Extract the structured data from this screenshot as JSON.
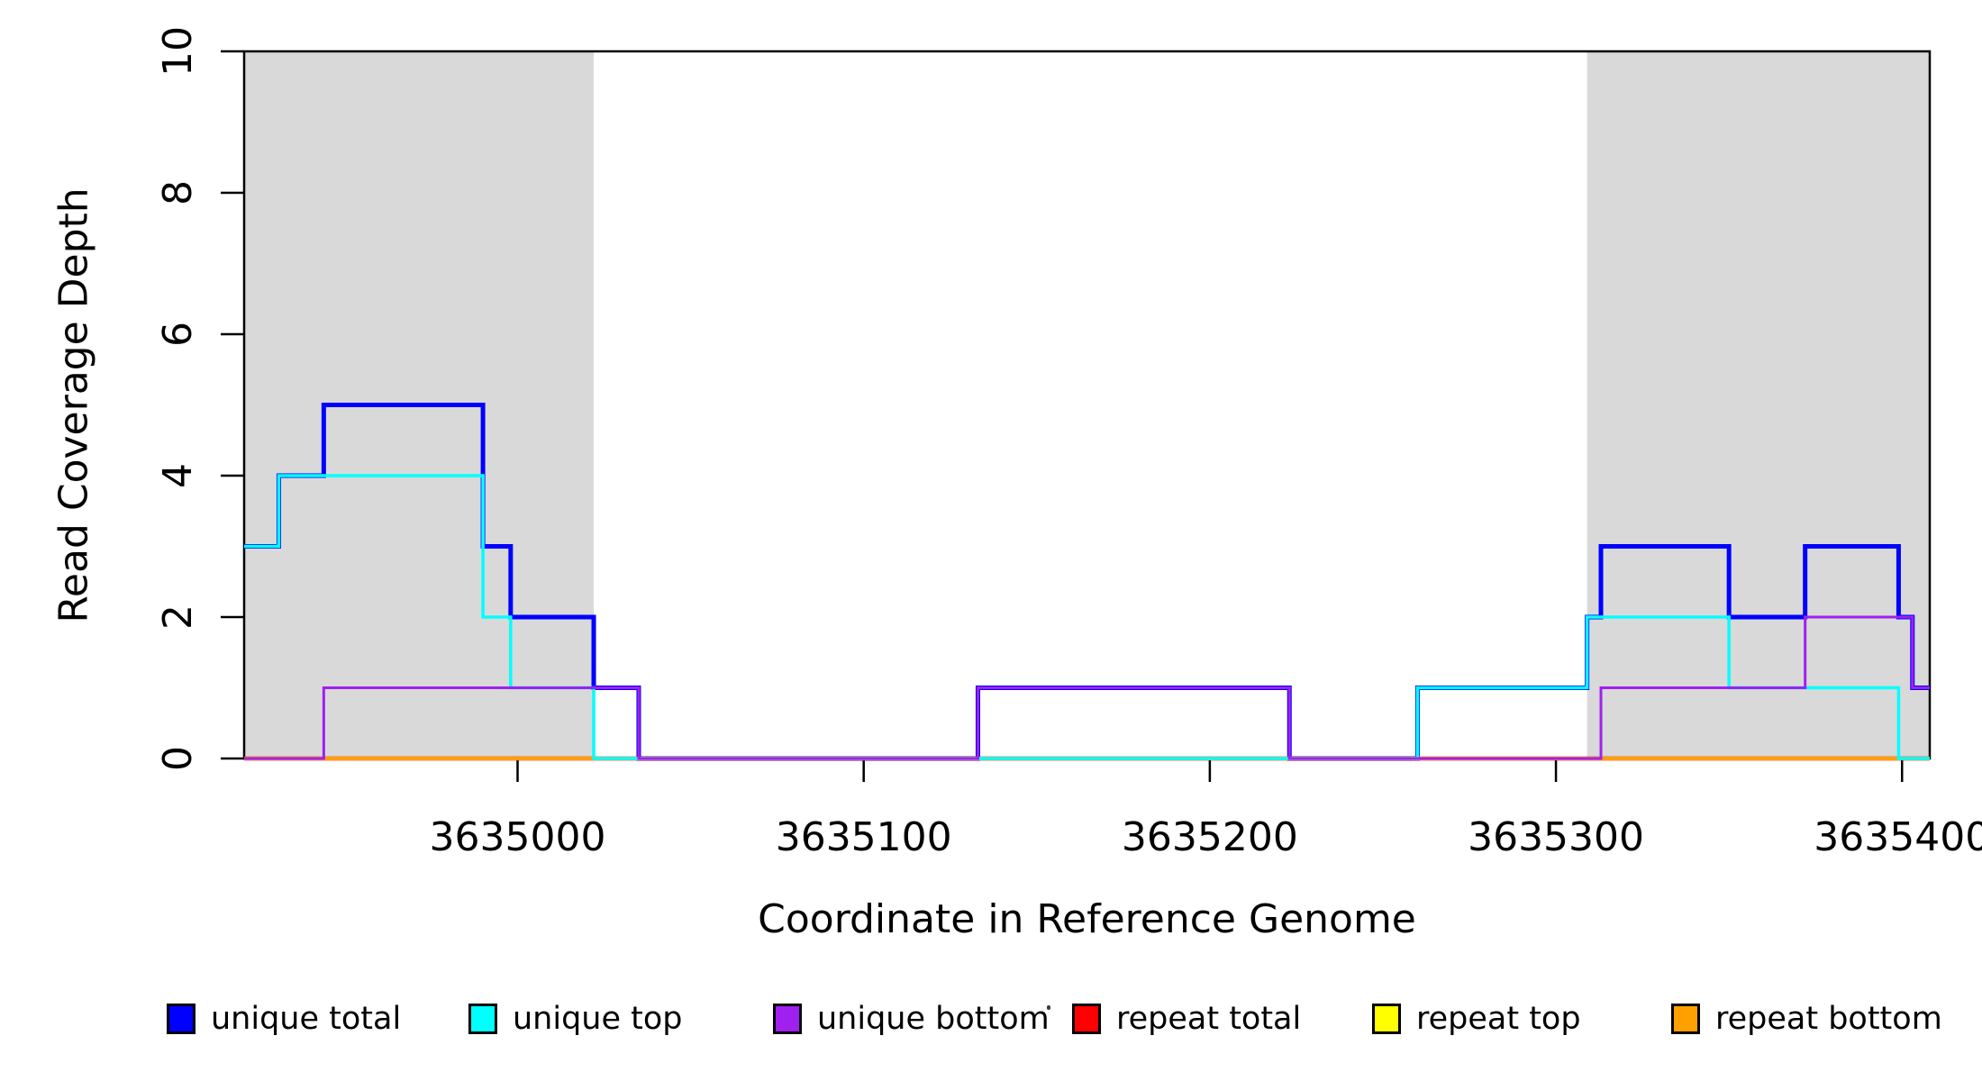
{
  "figure": {
    "background": "#ffffff",
    "border_color": "#000000"
  },
  "chart_data": {
    "type": "line",
    "subtype": "step-coverage-plot",
    "title": "",
    "xlabel": "Coordinate in Reference Genome",
    "ylabel": "Read Coverage Depth",
    "xlim": [
      3634921,
      3635408
    ],
    "ylim": [
      0,
      10
    ],
    "x_ticks": [
      3635000,
      3635100,
      3635200,
      3635300,
      3635400
    ],
    "y_ticks": [
      0,
      2,
      4,
      6,
      8,
      10
    ],
    "grid": false,
    "legend_position": "bottom",
    "shaded_regions": {
      "color": "#d9d9d9",
      "intervals": [
        [
          3634921,
          3635022
        ],
        [
          3635309,
          3635408
        ]
      ]
    },
    "breakpoints": [
      3634921,
      3634931,
      3634944,
      3634990,
      3634998,
      3635022,
      3635035,
      3635133,
      3635223,
      3635260,
      3635309,
      3635313,
      3635350,
      3635372,
      3635399,
      3635403,
      3635408
    ],
    "series": [
      {
        "key": "unique-total",
        "name": "unique total",
        "color": "#0000ff",
        "line_width": 5,
        "values": [
          3,
          4,
          5,
          3,
          2,
          1,
          0,
          1,
          0,
          1,
          2,
          3,
          2,
          3,
          2,
          1
        ]
      },
      {
        "key": "unique-top",
        "name": "unique top",
        "color": "#00ffff",
        "line_width": 3.5,
        "values": [
          3,
          4,
          4,
          2,
          1,
          0,
          0,
          0,
          0,
          1,
          2,
          2,
          1,
          1,
          0,
          0
        ]
      },
      {
        "key": "unique-bottom",
        "name": "unique bottom",
        "color": "#a020f0",
        "line_width": 3,
        "values": [
          0,
          0,
          1,
          1,
          1,
          1,
          0,
          1,
          0,
          0,
          0,
          1,
          1,
          2,
          2,
          1
        ]
      },
      {
        "key": "repeat-total",
        "name": "repeat total",
        "color": "#ff0000",
        "line_width": 4.5,
        "values": [
          0,
          0,
          0,
          0,
          0,
          0,
          0,
          0,
          0,
          0,
          0,
          0,
          0,
          0,
          0,
          0
        ]
      },
      {
        "key": "repeat-top",
        "name": "repeat top",
        "color": "#ffff00",
        "line_width": 4,
        "values": [
          0,
          0,
          0,
          0,
          0,
          0,
          0,
          0,
          0,
          0,
          0,
          0,
          0,
          0,
          0,
          0
        ]
      },
      {
        "key": "repeat-bottom",
        "name": "repeat bottom",
        "color": "#ffa000",
        "line_width": 4,
        "values": [
          0,
          0,
          0,
          0,
          0,
          0,
          0,
          0,
          0,
          0,
          0,
          0,
          0,
          0,
          0,
          0
        ]
      }
    ],
    "draw_order": [
      "unique-total",
      "repeat-total",
      "repeat-top",
      "repeat-bottom",
      "unique-top",
      "unique-bottom"
    ],
    "legend": {
      "items": [
        {
          "key": "unique-total",
          "label": "unique total",
          "color": "#0000ff"
        },
        {
          "key": "unique-top",
          "label": "unique top",
          "color": "#00ffff"
        },
        {
          "key": "unique-bottom",
          "label": "unique bottom",
          "color": "#a020f0"
        },
        {
          "key": "repeat-total",
          "label": "repeat total",
          "color": "#ff0000"
        },
        {
          "key": "repeat-top",
          "label": "repeat top",
          "color": "#ffff00"
        },
        {
          "key": "repeat-bottom",
          "label": "repeat bottom",
          "color": "#ffa000"
        }
      ]
    }
  }
}
